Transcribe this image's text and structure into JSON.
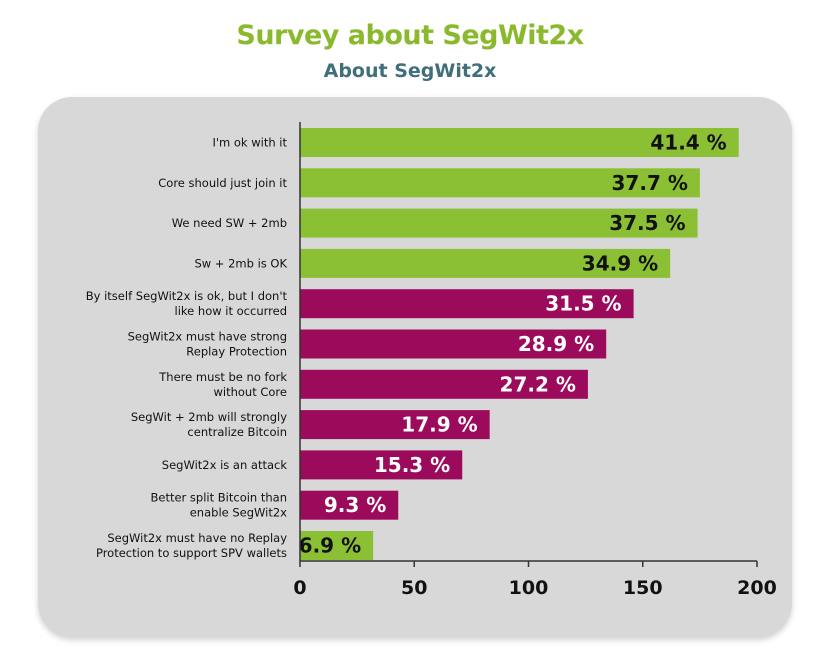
{
  "header": {
    "title": "Survey about SegWit2x",
    "subtitle": "About SegWit2x"
  },
  "colors": {
    "green": "#8bc034",
    "purple": "#9b0a5b"
  },
  "chart_data": {
    "type": "bar",
    "orientation": "horizontal",
    "title": "Survey about SegWit2x",
    "subtitle": "About SegWit2x",
    "xlim": [
      0,
      200
    ],
    "xticks": [
      0,
      50,
      100,
      150,
      200
    ],
    "categories": [
      [
        "I'm ok with it"
      ],
      [
        "Core should just join it"
      ],
      [
        "We need SW + 2mb"
      ],
      [
        "Sw + 2mb is OK"
      ],
      [
        "By itself SegWit2x is ok, but I don't",
        "like how it occurred"
      ],
      [
        "SegWit2x must have strong",
        "Replay Protection"
      ],
      [
        "There must be no fork",
        "without Core"
      ],
      [
        "SegWit + 2mb will strongly",
        "centralize Bitcoin"
      ],
      [
        "SegWit2x is an attack"
      ],
      [
        "Better split Bitcoin than",
        "enable SegWit2x"
      ],
      [
        "SegWit2x must have no Replay",
        "Protection to support SPV wallets"
      ]
    ],
    "values": [
      192,
      175,
      174,
      162,
      146,
      134,
      126,
      83,
      71,
      43,
      32
    ],
    "labels": [
      "41.4 %",
      "37.7 %",
      "37.5 %",
      "34.9 %",
      "31.5 %",
      "28.9 %",
      "27.2 %",
      "17.9 %",
      "15.3 %",
      "9.3 %",
      "6.9 %"
    ],
    "bar_colors": [
      "green",
      "green",
      "green",
      "green",
      "purple",
      "purple",
      "purple",
      "purple",
      "purple",
      "purple",
      "green"
    ],
    "grid": false,
    "legend": "none"
  }
}
